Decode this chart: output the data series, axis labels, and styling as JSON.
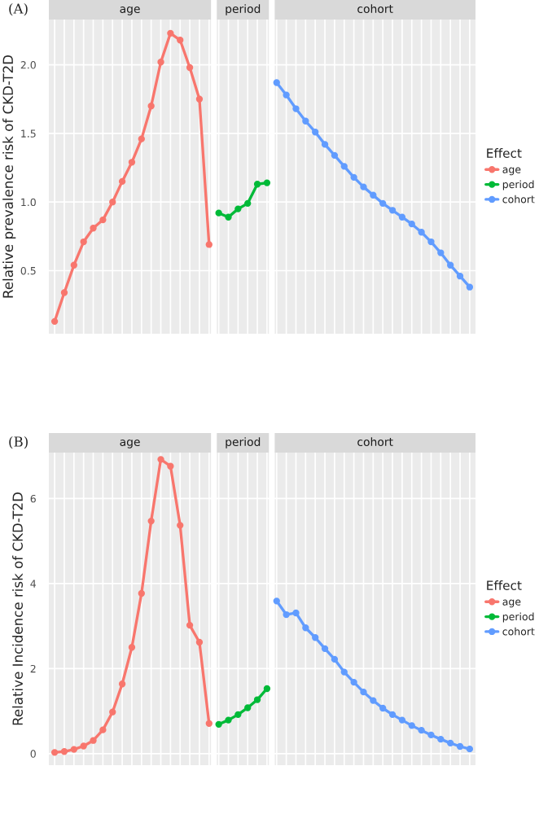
{
  "chart_data": [
    {
      "type": "line",
      "ylabel": "Relative prevalence risk of CKD-T2D",
      "legend_title": "Effect",
      "legend": "right",
      "annotations": [
        "(A)",
        "age",
        "period",
        "cohort"
      ],
      "categories": [
        null,
        null,
        null,
        null,
        null,
        null,
        null,
        null,
        null,
        null,
        null,
        null,
        null,
        null,
        null,
        null,
        null,
        null,
        null,
        null,
        null,
        null,
        null,
        null,
        null,
        null,
        null,
        null,
        null,
        null,
        null,
        null,
        null,
        null,
        null,
        null,
        null,
        null,
        null,
        null,
        null,
        null,
        null,
        null
      ],
      "series": [
        {
          "name": "age",
          "color": "#f8766d",
          "values": [
            0.13,
            0.34,
            0.54,
            0.71,
            0.81,
            0.87,
            1.0,
            1.15,
            1.29,
            1.46,
            1.7,
            2.02,
            2.23,
            2.18,
            1.98,
            1.75,
            0.69,
            null,
            null,
            null,
            null,
            null,
            null,
            null,
            null,
            null,
            null,
            null,
            null,
            null,
            null,
            null,
            null,
            null,
            null,
            null,
            null,
            null,
            null,
            null,
            null,
            null,
            null,
            null
          ]
        },
        {
          "name": "period",
          "color": "#00ba38",
          "values": [
            null,
            null,
            null,
            null,
            null,
            null,
            null,
            null,
            null,
            null,
            null,
            null,
            null,
            null,
            null,
            null,
            null,
            0.92,
            0.89,
            0.95,
            0.99,
            1.13,
            1.14,
            null,
            null,
            null,
            null,
            null,
            null,
            null,
            null,
            null,
            null,
            null,
            null,
            null,
            null,
            null,
            null,
            null,
            null,
            null,
            null,
            null
          ]
        },
        {
          "name": "cohort",
          "color": "#619cff",
          "values": [
            null,
            null,
            null,
            null,
            null,
            null,
            null,
            null,
            null,
            null,
            null,
            null,
            null,
            null,
            null,
            null,
            null,
            null,
            null,
            null,
            null,
            null,
            null,
            1.87,
            1.78,
            1.68,
            1.59,
            1.51,
            1.42,
            1.34,
            1.26,
            1.18,
            1.11,
            1.05,
            0.99,
            0.94,
            0.89,
            0.84,
            0.78,
            0.71,
            0.63,
            0.54,
            0.46,
            0.38
          ]
        }
      ],
      "ylim": [
        0.04,
        2.33
      ],
      "yticks": [
        {
          "value": 0.5,
          "label": "0.5"
        },
        {
          "value": 1,
          "label": "1.0"
        },
        {
          "value": 1.5,
          "label": "1.5"
        },
        {
          "value": 2,
          "label": "2.0"
        }
      ],
      "grid": true,
      "marker": "circle"
    },
    {
      "type": "line",
      "ylabel": "Relative Incidence risk of CKD-T2D",
      "legend_title": "Effect",
      "legend": "right",
      "annotations": [
        "(B)",
        "age",
        "period",
        "cohort"
      ],
      "categories": [
        null,
        null,
        null,
        null,
        null,
        null,
        null,
        null,
        null,
        null,
        null,
        null,
        null,
        null,
        null,
        null,
        null,
        null,
        null,
        null,
        null,
        null,
        null,
        null,
        null,
        null,
        null,
        null,
        null,
        null,
        null,
        null,
        null,
        null,
        null,
        null,
        null,
        null,
        null,
        null,
        null,
        null,
        null,
        null
      ],
      "series": [
        {
          "name": "age",
          "color": "#f8766d",
          "values": [
            0.03,
            0.05,
            0.1,
            0.18,
            0.31,
            0.56,
            0.98,
            1.64,
            2.5,
            3.77,
            5.47,
            6.92,
            6.76,
            5.37,
            3.02,
            2.62,
            0.71,
            null,
            null,
            null,
            null,
            null,
            null,
            null,
            null,
            null,
            null,
            null,
            null,
            null,
            null,
            null,
            null,
            null,
            null,
            null,
            null,
            null,
            null,
            null,
            null,
            null,
            null,
            null
          ]
        },
        {
          "name": "period",
          "color": "#00ba38",
          "values": [
            null,
            null,
            null,
            null,
            null,
            null,
            null,
            null,
            null,
            null,
            null,
            null,
            null,
            null,
            null,
            null,
            null,
            0.69,
            0.79,
            0.92,
            1.08,
            1.27,
            1.53,
            null,
            null,
            null,
            null,
            null,
            null,
            null,
            null,
            null,
            null,
            null,
            null,
            null,
            null,
            null,
            null,
            null,
            null,
            null,
            null,
            null
          ]
        },
        {
          "name": "cohort",
          "color": "#619cff",
          "values": [
            null,
            null,
            null,
            null,
            null,
            null,
            null,
            null,
            null,
            null,
            null,
            null,
            null,
            null,
            null,
            null,
            null,
            null,
            null,
            null,
            null,
            null,
            null,
            3.59,
            3.27,
            3.31,
            2.96,
            2.73,
            2.47,
            2.22,
            1.92,
            1.68,
            1.45,
            1.25,
            1.07,
            0.92,
            0.79,
            0.66,
            0.55,
            0.44,
            0.34,
            0.25,
            0.17,
            0.11
          ]
        }
      ],
      "ylim": [
        -0.27,
        7.08
      ],
      "yticks": [
        0,
        2,
        4,
        6
      ],
      "grid": true,
      "marker": "circle"
    }
  ]
}
